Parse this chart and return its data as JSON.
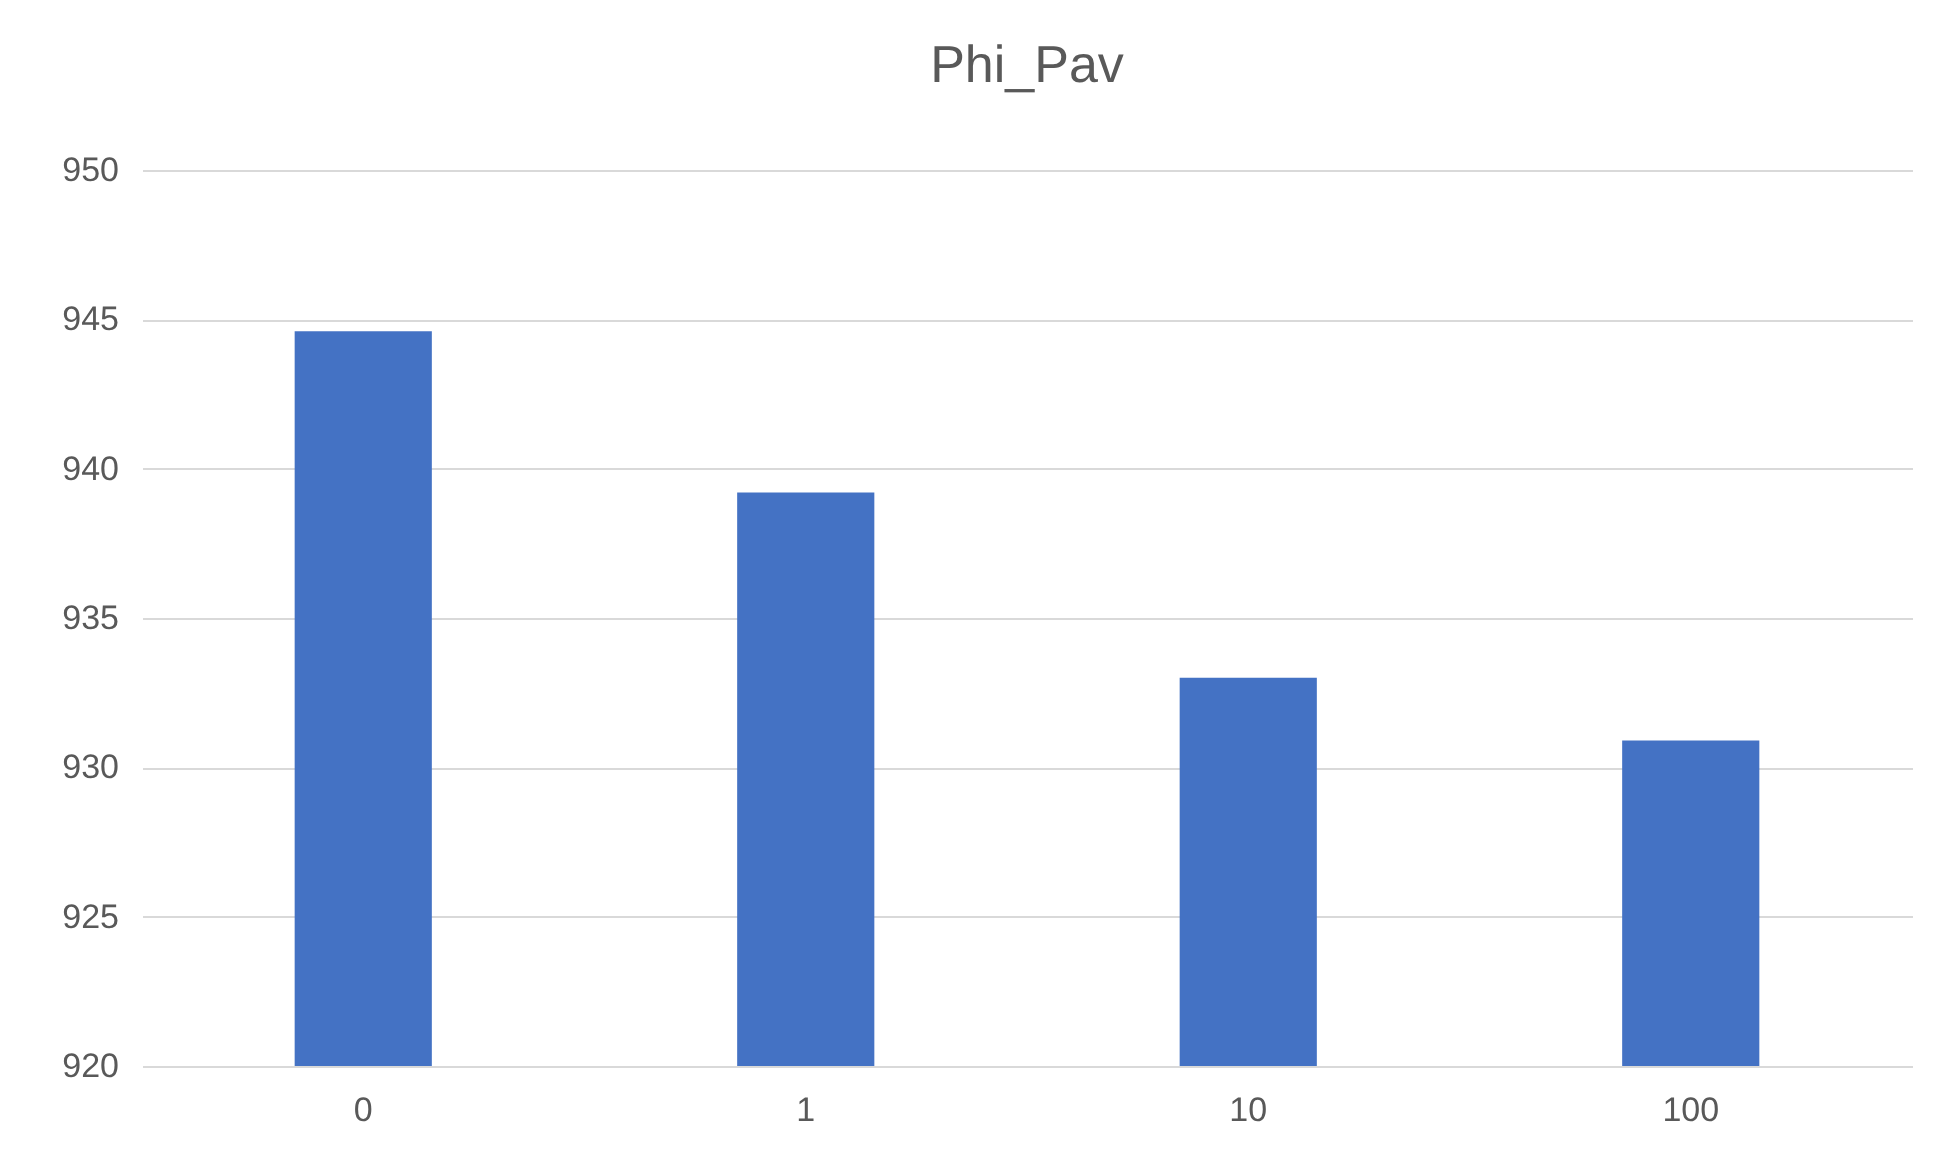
{
  "chart_data": {
    "type": "bar",
    "title": "Phi_Pav",
    "categories": [
      "0",
      "1",
      "10",
      "100"
    ],
    "values": [
      944.6,
      939.2,
      933.0,
      930.9
    ],
    "color": "#4472c4",
    "ylim": [
      920,
      950
    ],
    "yticks": [
      920,
      925,
      930,
      935,
      940,
      945,
      950
    ],
    "grid": "y"
  }
}
